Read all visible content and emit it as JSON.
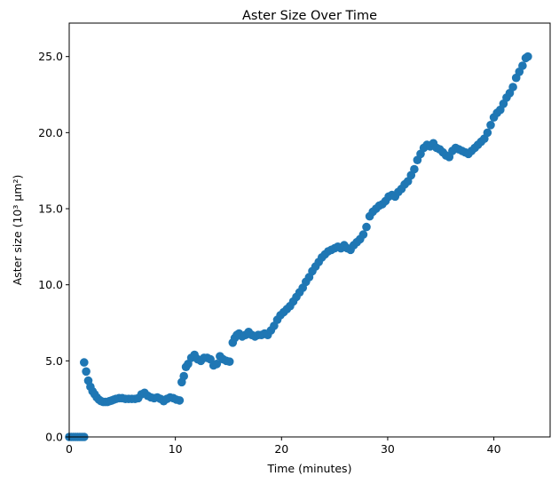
{
  "chart_data": {
    "type": "scatter",
    "title": "Aster Size Over Time",
    "xlabel": "Time (minutes)",
    "ylabel": "Aster size (10³ μm²)",
    "xlim": [
      0,
      45.3
    ],
    "ylim": [
      0,
      27.2
    ],
    "x_ticks": [
      0,
      10,
      20,
      30,
      40
    ],
    "x_tick_labels": [
      "0",
      "10",
      "20",
      "30",
      "40"
    ],
    "y_ticks": [
      0,
      5,
      10,
      15,
      20,
      25
    ],
    "y_tick_labels": [
      "0.0",
      "5.0",
      "10.0",
      "15.0",
      "20.0",
      "25.0"
    ],
    "grid": false,
    "legend": "none",
    "marker_color": "#1f77b4",
    "series": [
      {
        "x": [
          0.0,
          0.2,
          0.4,
          0.6,
          0.8,
          1.0,
          1.2,
          1.4,
          1.4,
          1.6,
          1.8,
          2.0,
          2.2,
          2.4,
          2.6,
          2.8,
          3.0,
          3.2,
          3.4,
          3.6,
          3.8,
          4.0,
          4.2,
          4.4,
          4.7,
          5.0,
          5.3,
          5.6,
          5.9,
          6.2,
          6.5,
          6.8,
          7.1,
          7.4,
          7.7,
          8.0,
          8.3,
          8.6,
          8.9,
          9.2,
          9.5,
          9.8,
          10.1,
          10.4,
          10.6,
          10.8,
          11.0,
          11.2,
          11.5,
          11.8,
          12.1,
          12.4,
          12.7,
          13.0,
          13.3,
          13.6,
          13.9,
          14.2,
          14.5,
          14.8,
          15.1,
          15.4,
          15.6,
          15.8,
          16.0,
          16.3,
          16.6,
          16.9,
          17.2,
          17.5,
          17.8,
          18.1,
          18.4,
          18.7,
          19.0,
          19.3,
          19.6,
          19.9,
          20.2,
          20.5,
          20.8,
          21.1,
          21.4,
          21.7,
          22.0,
          22.3,
          22.6,
          22.9,
          23.2,
          23.5,
          23.8,
          24.1,
          24.4,
          24.7,
          25.0,
          25.3,
          25.6,
          25.9,
          26.2,
          26.5,
          26.8,
          27.1,
          27.4,
          27.7,
          28.0,
          28.3,
          28.6,
          28.9,
          29.2,
          29.5,
          29.8,
          30.1,
          30.4,
          30.7,
          31.0,
          31.3,
          31.6,
          31.9,
          32.2,
          32.5,
          32.8,
          33.1,
          33.4,
          33.7,
          34.0,
          34.3,
          34.6,
          34.9,
          35.2,
          35.5,
          35.8,
          36.1,
          36.4,
          36.7,
          37.0,
          37.3,
          37.6,
          37.9,
          38.2,
          38.5,
          38.8,
          39.1,
          39.4,
          39.7,
          40.0,
          40.3,
          40.6,
          40.9,
          41.2,
          41.5,
          41.8,
          42.1,
          42.4,
          42.7,
          43.0,
          43.2
        ],
        "y": [
          0.0,
          0.0,
          0.0,
          0.0,
          0.0,
          0.0,
          0.0,
          0.0,
          4.9,
          4.3,
          3.7,
          3.3,
          3.0,
          2.8,
          2.6,
          2.45,
          2.35,
          2.3,
          2.3,
          2.3,
          2.35,
          2.4,
          2.45,
          2.5,
          2.55,
          2.55,
          2.5,
          2.5,
          2.5,
          2.5,
          2.55,
          2.8,
          2.9,
          2.7,
          2.6,
          2.55,
          2.6,
          2.5,
          2.35,
          2.5,
          2.6,
          2.55,
          2.45,
          2.4,
          3.6,
          4.0,
          4.6,
          4.8,
          5.2,
          5.4,
          5.1,
          5.0,
          5.2,
          5.2,
          5.1,
          4.7,
          4.8,
          5.3,
          5.1,
          5.0,
          4.95,
          6.2,
          6.5,
          6.7,
          6.8,
          6.6,
          6.7,
          6.9,
          6.7,
          6.6,
          6.7,
          6.7,
          6.8,
          6.7,
          7.0,
          7.3,
          7.7,
          8.0,
          8.2,
          8.4,
          8.6,
          8.9,
          9.2,
          9.5,
          9.8,
          10.2,
          10.5,
          10.9,
          11.2,
          11.5,
          11.8,
          12.0,
          12.2,
          12.3,
          12.4,
          12.5,
          12.4,
          12.6,
          12.4,
          12.3,
          12.6,
          12.8,
          13.0,
          13.3,
          13.8,
          14.5,
          14.8,
          15.0,
          15.2,
          15.3,
          15.5,
          15.8,
          15.9,
          15.8,
          16.1,
          16.3,
          16.6,
          16.8,
          17.2,
          17.6,
          18.2,
          18.6,
          19.0,
          19.2,
          19.1,
          19.3,
          19.0,
          18.9,
          18.7,
          18.5,
          18.4,
          18.8,
          19.0,
          18.9,
          18.8,
          18.7,
          18.6,
          18.8,
          19.0,
          19.2,
          19.4,
          19.6,
          20.0,
          20.5,
          21.0,
          21.3,
          21.5,
          21.9,
          22.3,
          22.6,
          23.0,
          23.6,
          24.0,
          24.4,
          24.9,
          25.0
        ]
      }
    ]
  }
}
